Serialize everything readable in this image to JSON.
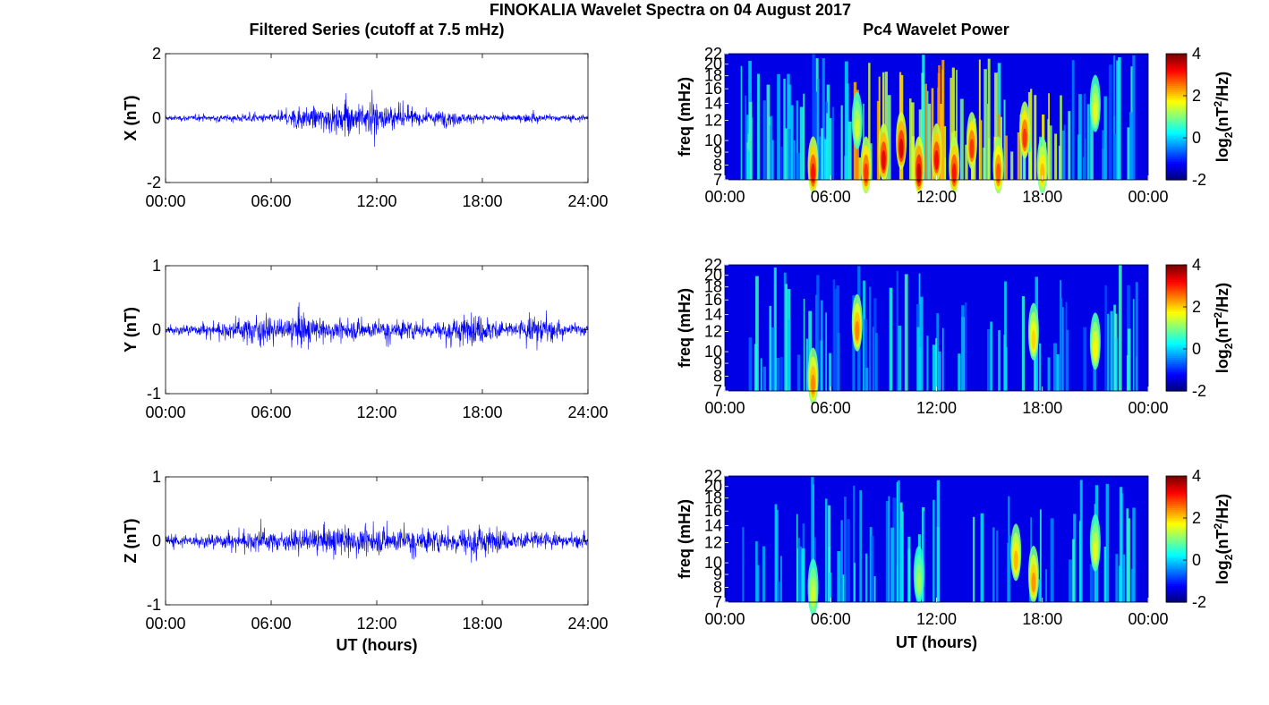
{
  "figure": {
    "title": "FINOKALIA Wavelet Spectra on 04 August 2017",
    "left_title": "Filtered Series (cutoff at 7.5 mHz)",
    "right_title": "Pc4 Wavelet Power",
    "xlabel": "UT (hours)"
  },
  "chart_data": [
    {
      "type": "line",
      "title": "Filtered Series (cutoff at 7.5 mHz)",
      "ylabel": "X (nT)",
      "xlabel": "",
      "xlim": [
        0,
        24
      ],
      "ylim": [
        -2,
        2
      ],
      "xtick_labels": [
        "00:00",
        "06:00",
        "12:00",
        "18:00",
        "24:00"
      ],
      "ytick_values": [
        -2,
        0,
        2
      ],
      "ytick_labels": [
        "-2",
        "0",
        "2"
      ],
      "series_color": "#0000ff",
      "envelope": {
        "x": [
          0,
          1,
          2,
          3,
          4,
          5,
          6,
          7,
          7.5,
          8,
          9,
          10,
          10.5,
          11,
          12,
          12.4,
          13,
          14,
          15,
          16,
          17,
          18,
          19,
          20,
          21,
          22,
          23,
          24
        ],
        "ymax": [
          0.15,
          0.15,
          0.15,
          0.15,
          0.2,
          0.25,
          0.2,
          0.35,
          0.8,
          0.55,
          0.65,
          0.8,
          0.9,
          0.85,
          1.0,
          0.7,
          0.6,
          0.5,
          0.35,
          0.5,
          0.3,
          0.2,
          0.2,
          0.2,
          0.3,
          0.15,
          0.15,
          0.2
        ],
        "ymin": [
          -0.15,
          -0.15,
          -0.15,
          -0.15,
          -0.2,
          -0.2,
          -0.2,
          -0.35,
          -0.7,
          -0.5,
          -0.6,
          -0.7,
          -0.75,
          -0.6,
          -1.15,
          -0.6,
          -0.5,
          -0.45,
          -0.3,
          -0.4,
          -0.25,
          -0.2,
          -0.15,
          -0.15,
          -0.2,
          -0.15,
          -0.15,
          -0.2
        ]
      }
    },
    {
      "type": "line",
      "title": "",
      "ylabel": "Y (nT)",
      "xlabel": "",
      "xlim": [
        0,
        24
      ],
      "ylim": [
        -1,
        1
      ],
      "xtick_labels": [
        "00:00",
        "06:00",
        "12:00",
        "18:00",
        "24:00"
      ],
      "ytick_values": [
        -1,
        0,
        1
      ],
      "ytick_labels": [
        "-1",
        "0",
        "1"
      ],
      "series_color": "#0000ff",
      "envelope": {
        "x": [
          0,
          1,
          2,
          3,
          4,
          5,
          5.3,
          6,
          7,
          7.8,
          8,
          9,
          10,
          11,
          12,
          13,
          14,
          15,
          16,
          17,
          18,
          19,
          20,
          21,
          21.3,
          22,
          23,
          24
        ],
        "ymax": [
          0.1,
          0.12,
          0.15,
          0.15,
          0.25,
          0.35,
          0.47,
          0.25,
          0.25,
          0.55,
          0.3,
          0.25,
          0.25,
          0.25,
          0.2,
          0.2,
          0.25,
          0.2,
          0.25,
          0.35,
          0.4,
          0.25,
          0.2,
          0.35,
          0.45,
          0.2,
          0.15,
          0.15
        ],
        "ymin": [
          -0.1,
          -0.12,
          -0.15,
          -0.2,
          -0.3,
          -0.4,
          -0.5,
          -0.3,
          -0.3,
          -0.55,
          -0.35,
          -0.3,
          -0.3,
          -0.3,
          -0.25,
          -0.3,
          -0.3,
          -0.25,
          -0.3,
          -0.35,
          -0.4,
          -0.3,
          -0.25,
          -0.4,
          -0.35,
          -0.25,
          -0.15,
          -0.15
        ]
      }
    },
    {
      "type": "line",
      "title": "",
      "ylabel": "Z (nT)",
      "xlabel": "UT (hours)",
      "xlim": [
        0,
        24
      ],
      "ylim": [
        -1,
        1
      ],
      "xtick_labels": [
        "00:00",
        "06:00",
        "12:00",
        "18:00",
        "24:00"
      ],
      "ytick_values": [
        -1,
        0,
        1
      ],
      "ytick_labels": [
        "-1",
        "0",
        "1"
      ],
      "series_color": "#0000ff",
      "envelope": {
        "x": [
          0,
          1,
          2,
          3,
          4,
          5,
          5.3,
          6,
          7,
          8,
          9,
          10,
          11,
          12,
          13,
          14,
          15,
          16,
          17,
          17.8,
          18,
          19,
          20,
          21,
          22,
          23,
          24
        ],
        "ymax": [
          0.15,
          0.15,
          0.15,
          0.2,
          0.2,
          0.3,
          0.42,
          0.25,
          0.25,
          0.3,
          0.35,
          0.4,
          0.45,
          0.4,
          0.35,
          0.3,
          0.3,
          0.35,
          0.4,
          0.55,
          0.35,
          0.3,
          0.25,
          0.4,
          0.2,
          0.15,
          0.2
        ],
        "ymin": [
          -0.15,
          -0.15,
          -0.15,
          -0.2,
          -0.2,
          -0.25,
          -0.3,
          -0.25,
          -0.25,
          -0.3,
          -0.3,
          -0.35,
          -0.35,
          -0.3,
          -0.3,
          -0.3,
          -0.35,
          -0.3,
          -0.35,
          -0.35,
          -0.3,
          -0.25,
          -0.2,
          -0.25,
          -0.15,
          -0.15,
          -0.15
        ]
      }
    },
    {
      "type": "heatmap",
      "title": "Pc4 Wavelet Power",
      "ylabel": "freq (mHz)",
      "xlabel": "",
      "xlim": [
        0,
        24
      ],
      "ylim": [
        7,
        22
      ],
      "xtick_labels": [
        "00:00",
        "06:00",
        "12:00",
        "18:00",
        "00:00"
      ],
      "ytick_labels": [
        "7",
        "8",
        "9",
        "10",
        "12",
        "14",
        "16",
        "18",
        "20",
        "22"
      ],
      "colorbar_label": "log2(nT2/Hz)",
      "colorbar_range": [
        -2,
        4
      ],
      "colorbar_ticks": [
        "-2",
        "0",
        "2",
        "4"
      ],
      "hotspots": [
        {
          "t": 5.0,
          "f": 8,
          "power": 3.2
        },
        {
          "t": 7.5,
          "f": 12,
          "power": 1.5
        },
        {
          "t": 8.0,
          "f": 8,
          "power": 3.0
        },
        {
          "t": 9.0,
          "f": 9,
          "power": 3.4
        },
        {
          "t": 10.0,
          "f": 10,
          "power": 3.5
        },
        {
          "t": 11.0,
          "f": 8,
          "power": 3.6
        },
        {
          "t": 12.0,
          "f": 9,
          "power": 3.3
        },
        {
          "t": 13.0,
          "f": 8,
          "power": 3.2
        },
        {
          "t": 14.0,
          "f": 10,
          "power": 3.0
        },
        {
          "t": 15.5,
          "f": 8,
          "power": 2.8
        },
        {
          "t": 17.0,
          "f": 11,
          "power": 3.0
        },
        {
          "t": 18.0,
          "f": 8,
          "power": 2.2
        },
        {
          "t": 21.0,
          "f": 14,
          "power": 1.6
        }
      ]
    },
    {
      "type": "heatmap",
      "title": "",
      "ylabel": "freq (mHz)",
      "xlabel": "",
      "xlim": [
        0,
        24
      ],
      "ylim": [
        7,
        22
      ],
      "xtick_labels": [
        "00:00",
        "06:00",
        "12:00",
        "18:00",
        "00:00"
      ],
      "ytick_labels": [
        "7",
        "8",
        "9",
        "10",
        "12",
        "14",
        "16",
        "18",
        "20",
        "22"
      ],
      "colorbar_label": "log2(nT2/Hz)",
      "colorbar_range": [
        -2,
        4
      ],
      "colorbar_ticks": [
        "-2",
        "0",
        "2",
        "4"
      ],
      "hotspots": [
        {
          "t": 5.0,
          "f": 8,
          "power": 2.5
        },
        {
          "t": 7.5,
          "f": 13,
          "power": 2.5
        },
        {
          "t": 17.5,
          "f": 12,
          "power": 2.0
        },
        {
          "t": 21.0,
          "f": 11,
          "power": 1.8
        }
      ]
    },
    {
      "type": "heatmap",
      "title": "",
      "ylabel": "freq (mHz)",
      "xlabel": "UT (hours)",
      "xlim": [
        0,
        24
      ],
      "ylim": [
        7,
        22
      ],
      "xtick_labels": [
        "00:00",
        "06:00",
        "12:00",
        "18:00",
        "00:00"
      ],
      "ytick_labels": [
        "7",
        "8",
        "9",
        "10",
        "12",
        "14",
        "16",
        "18",
        "20",
        "22"
      ],
      "colorbar_label": "log2(nT2/Hz)",
      "colorbar_range": [
        -2,
        4
      ],
      "colorbar_ticks": [
        "-2",
        "0",
        "2",
        "4"
      ],
      "hotspots": [
        {
          "t": 5.0,
          "f": 8,
          "power": 1.5
        },
        {
          "t": 11.0,
          "f": 9,
          "power": 1.2
        },
        {
          "t": 16.5,
          "f": 11,
          "power": 2.2
        },
        {
          "t": 17.5,
          "f": 9,
          "power": 2.4
        },
        {
          "t": 21.0,
          "f": 12,
          "power": 1.6
        }
      ]
    }
  ]
}
